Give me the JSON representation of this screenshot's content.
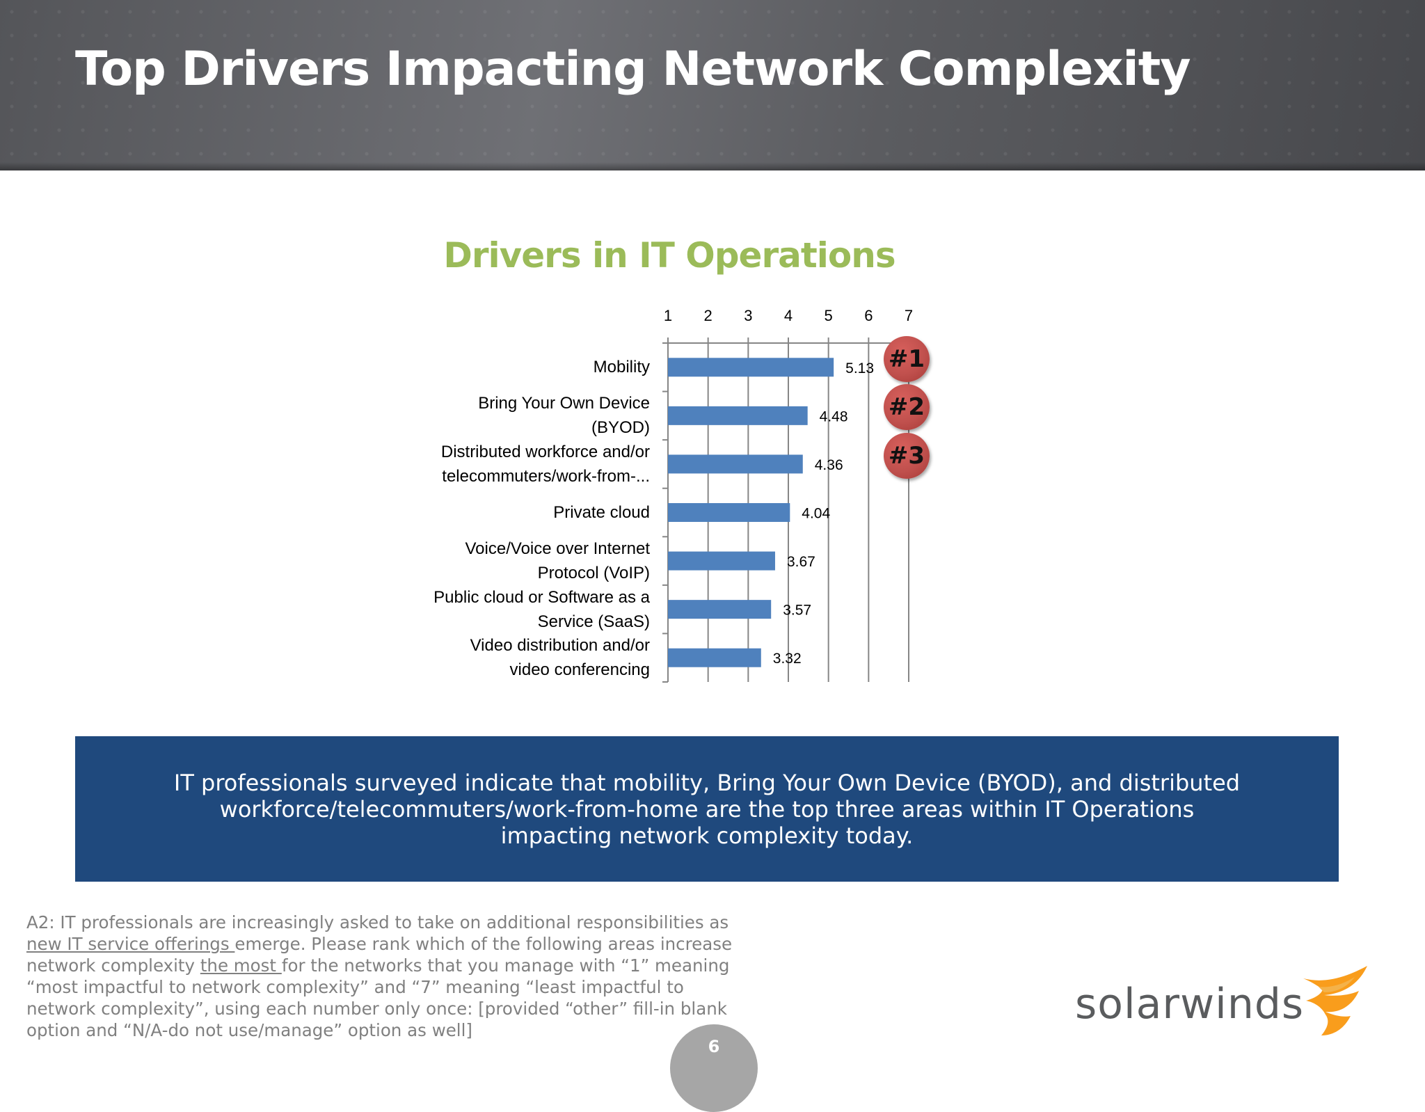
{
  "slide": {
    "title": "Top Drivers Impacting Network Complexity",
    "page_number": "6"
  },
  "chart_data": {
    "type": "bar",
    "orientation": "horizontal",
    "title": "Drivers in IT Operations",
    "categories": [
      "Mobility",
      "Bring Your Own Device (BYOD)",
      "Distributed workforce and/or telecommuters/work-from-...",
      "Private cloud",
      "Voice/Voice over Internet Protocol (VoIP)",
      "Public cloud or Software as a Service (SaaS)",
      "Video distribution and/or video conferencing"
    ],
    "category_lines": [
      [
        "Mobility"
      ],
      [
        "Bring Your Own Device",
        "(BYOD)"
      ],
      [
        "Distributed workforce and/or",
        "telecommuters/work-from-..."
      ],
      [
        "Private cloud"
      ],
      [
        "Voice/Voice over Internet",
        "Protocol (VoIP)"
      ],
      [
        "Public cloud or Software as a",
        "Service (SaaS)"
      ],
      [
        "Video distribution and/or",
        "video conferencing"
      ]
    ],
    "values": [
      5.13,
      4.48,
      4.36,
      4.04,
      3.67,
      3.57,
      3.32
    ],
    "value_labels": [
      "5.13",
      "4.48",
      "4.36",
      "4.04",
      "3.67",
      "3.57",
      "3.32"
    ],
    "xlim": [
      1,
      7
    ],
    "x_ticks": [
      "1",
      "2",
      "3",
      "4",
      "5",
      "6",
      "7"
    ],
    "axis_position": "top",
    "grid": true,
    "bar_color": "#4f81bd",
    "rank_badges": [
      "#1",
      "#2",
      "#3"
    ],
    "rank_badge_color": "#c0504d"
  },
  "banner": {
    "text": "IT professionals surveyed indicate that mobility, Bring Your Own Device (BYOD), and distributed workforce/telecommuters/work-from-home are the top three areas within IT Operations impacting network complexity today.",
    "color": "#1f497d"
  },
  "footnote": {
    "part1": "A2: IT professionals are increasingly asked to take on additional responsibilities as ",
    "underline1": "new IT service offerings ",
    "part2": "emerge. Please rank which of the following areas increase network complexity ",
    "underline2": "the most ",
    "part3": "for the networks that you manage with “1” meaning “most impactful to network complexity” and “7” meaning “least impactful to network complexity”, using each number only once: [provided “other” fill-in blank option and “N/A-do not use/manage” option as well]"
  },
  "logo": {
    "text": "solarwinds",
    "accent_color": "#f99d1c"
  }
}
